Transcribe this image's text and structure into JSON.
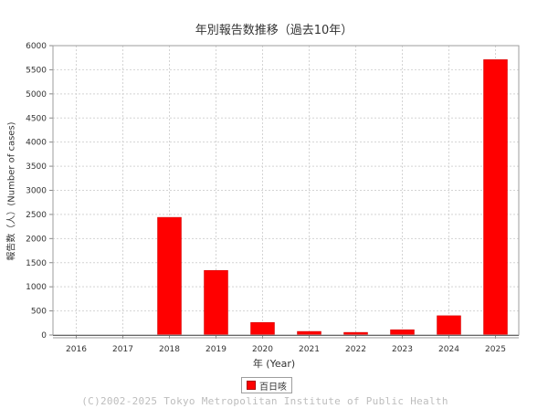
{
  "chart_data": {
    "type": "bar",
    "title": "年別報告数推移（過去10年）",
    "xlabel": "年 (Year)",
    "ylabel": "報告数（人）(Number of cases)",
    "categories": [
      "2016",
      "2017",
      "2018",
      "2019",
      "2020",
      "2021",
      "2022",
      "2023",
      "2024",
      "2025"
    ],
    "series": [
      {
        "name": "百日咳",
        "values": [
          0,
          0,
          2440,
          1340,
          260,
          75,
          55,
          110,
          400,
          5710
        ]
      }
    ],
    "ylim": [
      0,
      6000
    ],
    "yticks": [
      0,
      500,
      1000,
      1500,
      2000,
      2500,
      3000,
      3500,
      4000,
      4500,
      5000,
      5500,
      6000
    ],
    "grid": true,
    "legend_position": "bottom",
    "bar_color": "#ff0000"
  },
  "footer": {
    "copyright": "(C)2002-2025 Tokyo Metropolitan Institute of Public Health"
  }
}
